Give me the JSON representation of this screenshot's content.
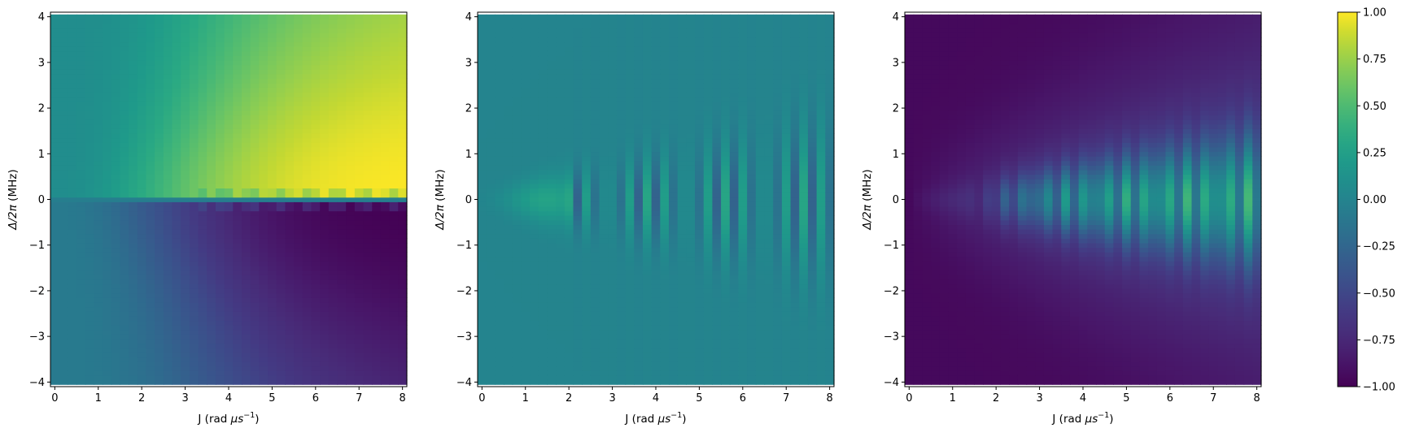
{
  "chart_data": [
    {
      "type": "heatmap",
      "panel": 1,
      "xlabel": "J (rad μs⁻¹)",
      "ylabel": "Δ/2π (MHz)",
      "xlim": [
        -0.1,
        8.1
      ],
      "ylim": [
        -4.1,
        4.1
      ],
      "xticks": [
        0,
        1,
        2,
        3,
        4,
        5,
        6,
        7,
        8
      ],
      "yticks": [
        -4,
        -3,
        -2,
        -1,
        0,
        1,
        2,
        3,
        4
      ],
      "colormap": "viridis",
      "vmin": -1.0,
      "vmax": 1.0,
      "grid": {
        "nx": 41,
        "ny": 81,
        "x_range": [
          0,
          8
        ],
        "y_range": [
          -4,
          4
        ]
      },
      "description_values": {
        "upper_half": "increases from about 0.1 at J=0 to about 1.0 at large J near Δ=0+",
        "center_row": "about -0.05 at Δ=0",
        "lower_half": "decreases from about -0.1 at J=0 to about -0.95 at large J near Δ=0-",
        "corner_values": {
          "top_left": 0.1,
          "top_right": 0.55,
          "bottom_left": -0.1,
          "bottom_right": -0.5,
          "near_zero_right_above": 0.95,
          "near_zero_right_below": -0.93
        }
      }
    },
    {
      "type": "heatmap",
      "panel": 2,
      "xlabel": "J (rad μs⁻¹)",
      "ylabel": "Δ/2π (MHz)",
      "xlim": [
        -0.1,
        8.1
      ],
      "ylim": [
        -4.1,
        4.1
      ],
      "xticks": [
        0,
        1,
        2,
        3,
        4,
        5,
        6,
        7,
        8
      ],
      "yticks": [
        -4,
        -3,
        -2,
        -1,
        0,
        1,
        2,
        3,
        4
      ],
      "colormap": "viridis",
      "vmin": -1.0,
      "vmax": 1.0,
      "grid": {
        "nx": 41,
        "ny": 81,
        "x_range": [
          0,
          8
        ],
        "y_range": [
          -4,
          4
        ]
      },
      "description_values": {
        "background": 0.0,
        "center_band": "peak about 0.3 near J=1.5 around Δ=0, then oscillating between about -0.35 and 0.35 for J>2"
      }
    },
    {
      "type": "heatmap",
      "panel": 3,
      "xlabel": "J (rad μs⁻¹)",
      "ylabel": "Δ/2π (MHz)",
      "xlim": [
        -0.1,
        8.1
      ],
      "ylim": [
        -4.1,
        4.1
      ],
      "xticks": [
        0,
        1,
        2,
        3,
        4,
        5,
        6,
        7,
        8
      ],
      "yticks": [
        -4,
        -3,
        -2,
        -1,
        0,
        1,
        2,
        3,
        4
      ],
      "colormap": "viridis",
      "vmin": -1.0,
      "vmax": 1.0,
      "grid": {
        "nx": 41,
        "ny": 81,
        "x_range": [
          0,
          8
        ],
        "y_range": [
          -4,
          4
        ]
      },
      "description_values": {
        "background": -0.95,
        "center_band": "rises to about -0.1 near J=2 around Δ=0, oscillating between about -0.6 and 0.7 for J>2, widening toward large J"
      }
    }
  ],
  "colorbar": {
    "ticks": [
      1.0,
      0.75,
      0.5,
      0.25,
      0.0,
      -0.25,
      -0.5,
      -0.75,
      -1.0
    ],
    "tick_labels": [
      "1.00",
      "0.75",
      "0.50",
      "0.25",
      "0.00",
      "−0.25",
      "−0.50",
      "−0.75",
      "−1.00"
    ],
    "vmin": -1.0,
    "vmax": 1.0
  },
  "axis_text": {
    "xlabel_prefix": "J (rad ",
    "xlabel_mu": "μ",
    "xlabel_s": "s",
    "xlabel_exp": "−1",
    "xlabel_suffix": ")",
    "ylabel_delta": "Δ/2",
    "ylabel_pi": "π",
    "ylabel_suffix": " (MHz)",
    "xtick_labels": [
      "0",
      "1",
      "2",
      "3",
      "4",
      "5",
      "6",
      "7",
      "8"
    ],
    "ytick_labels": [
      "−4",
      "−3",
      "−2",
      "−1",
      "0",
      "1",
      "2",
      "3",
      "4"
    ]
  }
}
